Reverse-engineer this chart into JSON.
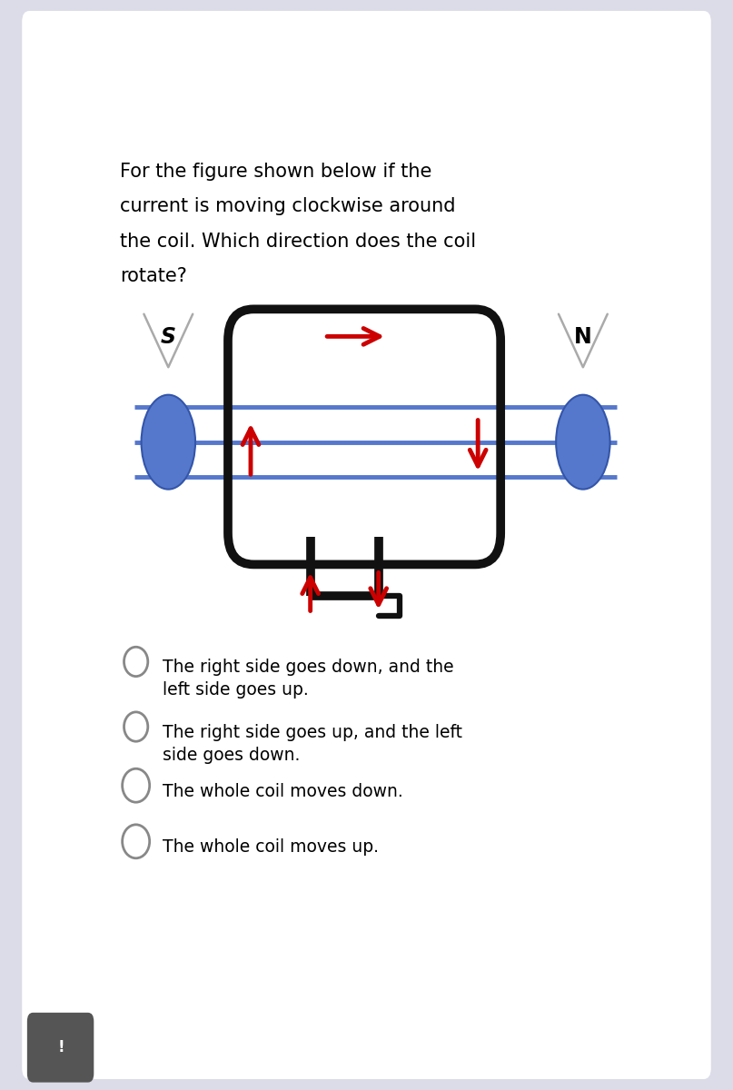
{
  "bg_color": "#ffffff",
  "page_bg": "#dcdce8",
  "question_lines": [
    "For the figure shown below if the",
    "current is moving clockwise around",
    "the coil. Which direction does the coil",
    "rotate?"
  ],
  "options": [
    "The right side goes down, and the\nleft side goes up.",
    "The right side goes up, and the left\nside goes down.",
    "The whole coil moves down.",
    "The whole coil moves up."
  ],
  "coil_color": "#111111",
  "arrow_color": "#cc0000",
  "field_line_color": "#5577cc",
  "magnet_color": "#5577cc",
  "S_label": "S",
  "N_label": "N"
}
